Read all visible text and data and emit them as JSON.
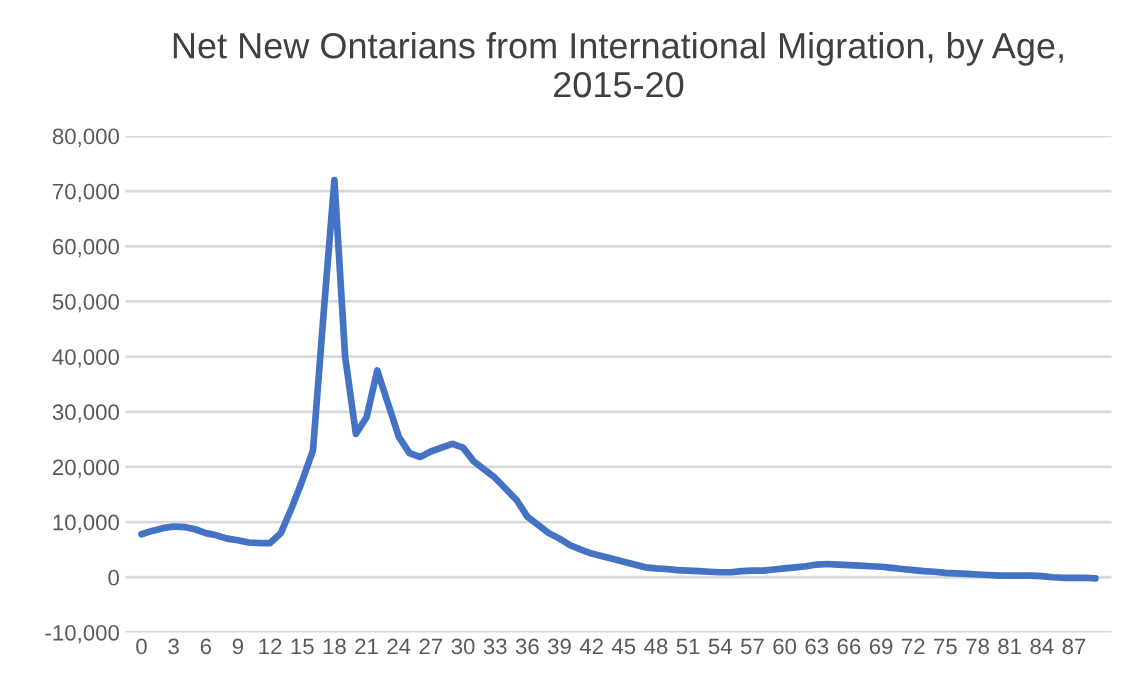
{
  "chart_data": {
    "type": "line",
    "title": "Net New Ontarians from International Migration, by Age,\n2015-20",
    "categories": [
      "0",
      null,
      null,
      "3",
      null,
      null,
      "6",
      null,
      null,
      "9",
      null,
      null,
      "12",
      null,
      null,
      "15",
      null,
      null,
      "18",
      null,
      null,
      "21",
      null,
      null,
      "24",
      null,
      null,
      "27",
      null,
      null,
      "30",
      null,
      null,
      "33",
      null,
      null,
      "36",
      null,
      null,
      "39",
      null,
      null,
      "42",
      null,
      null,
      "45",
      null,
      null,
      "48",
      null,
      null,
      "51",
      null,
      null,
      "54",
      null,
      null,
      "57",
      null,
      null,
      "60",
      null,
      null,
      "63",
      null,
      null,
      "66",
      null,
      null,
      "69",
      null,
      null,
      "72",
      null,
      null,
      "75",
      null,
      null,
      "78",
      null,
      null,
      "81",
      null,
      null,
      "84",
      null,
      null,
      "87",
      null,
      null
    ],
    "series": [
      {
        "color": "#4472c4",
        "values": [
          7800,
          8400,
          8900,
          9200,
          9100,
          8700,
          8000,
          7600,
          7000,
          6700,
          6300,
          6200,
          6200,
          8000,
          12500,
          17500,
          23000,
          48000,
          72000,
          40000,
          26000,
          29000,
          37500,
          31500,
          25500,
          22500,
          21800,
          22800,
          23500,
          24200,
          23500,
          21000,
          19500,
          18000,
          16000,
          14000,
          11000,
          9500,
          8000,
          7000,
          5800,
          5000,
          4300,
          3800,
          3300,
          2800,
          2300,
          1800,
          1600,
          1500,
          1300,
          1200,
          1100,
          1000,
          900,
          900,
          1100,
          1200,
          1200,
          1400,
          1600,
          1800,
          2000,
          2300,
          2400,
          2300,
          2200,
          2100,
          2000,
          1900,
          1700,
          1500,
          1300,
          1100,
          1000,
          800,
          700,
          600,
          500,
          400,
          300,
          300,
          300,
          300,
          200,
          0,
          -100,
          -100,
          -100,
          -200
        ]
      }
    ],
    "ylim": [
      -10000,
      80000
    ],
    "yticks": [
      {
        "value": -10000,
        "label": "-10,000"
      },
      {
        "value": 0,
        "label": "0"
      },
      {
        "value": 10000,
        "label": "10,000"
      },
      {
        "value": 20000,
        "label": "20,000"
      },
      {
        "value": 30000,
        "label": "30,000"
      },
      {
        "value": 40000,
        "label": "40,000"
      },
      {
        "value": 50000,
        "label": "50,000"
      },
      {
        "value": 60000,
        "label": "60,000"
      },
      {
        "value": 70000,
        "label": "70,000"
      },
      {
        "value": 80000,
        "label": "80,000"
      }
    ],
    "grid": "y",
    "marker": "none",
    "line_style": "solid"
  }
}
